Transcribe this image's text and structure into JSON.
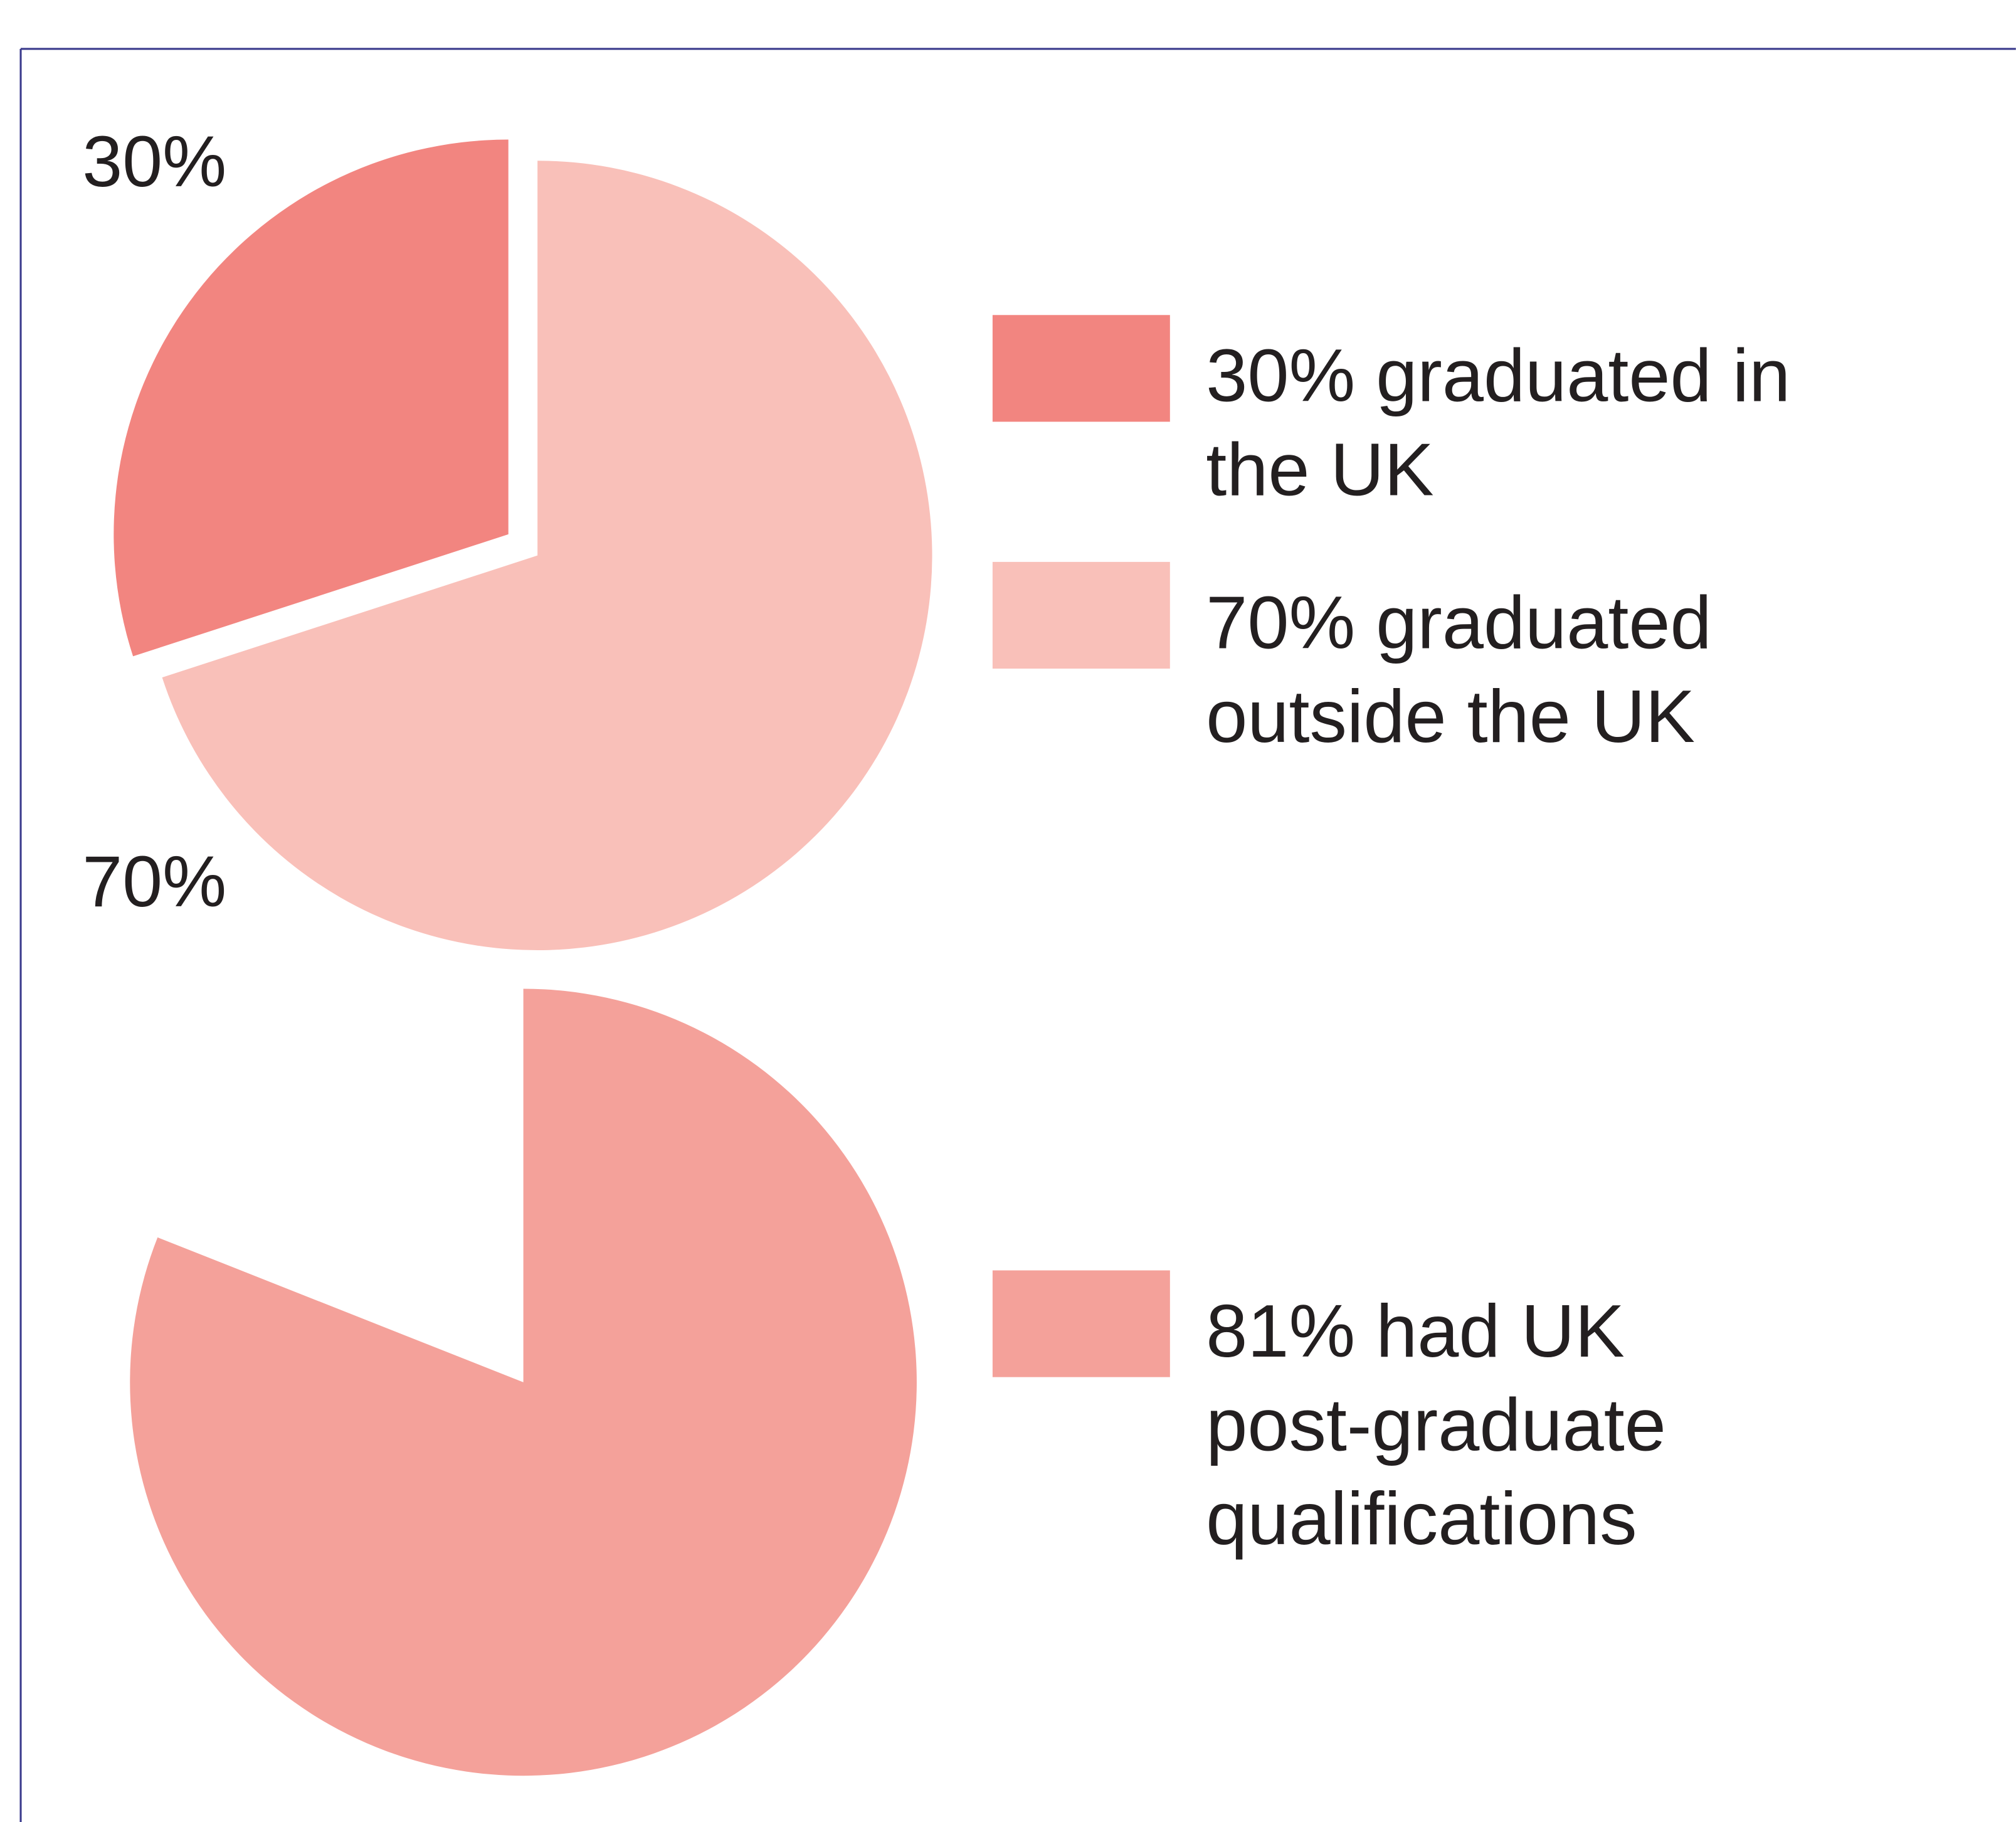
{
  "chart_data": [
    {
      "type": "pie",
      "categories": [
        "30% graduated in the UK",
        "70% graduated outside the UK"
      ],
      "values": [
        30,
        70
      ],
      "value_labels": [
        "30%",
        "70%"
      ],
      "colors": [
        "#f28580",
        "#f9c0b9"
      ]
    },
    {
      "type": "pie",
      "categories": [
        "81% had UK post-graduate qualifications"
      ],
      "values": [
        81
      ],
      "colors": [
        "#f4a19a"
      ]
    }
  ]
}
